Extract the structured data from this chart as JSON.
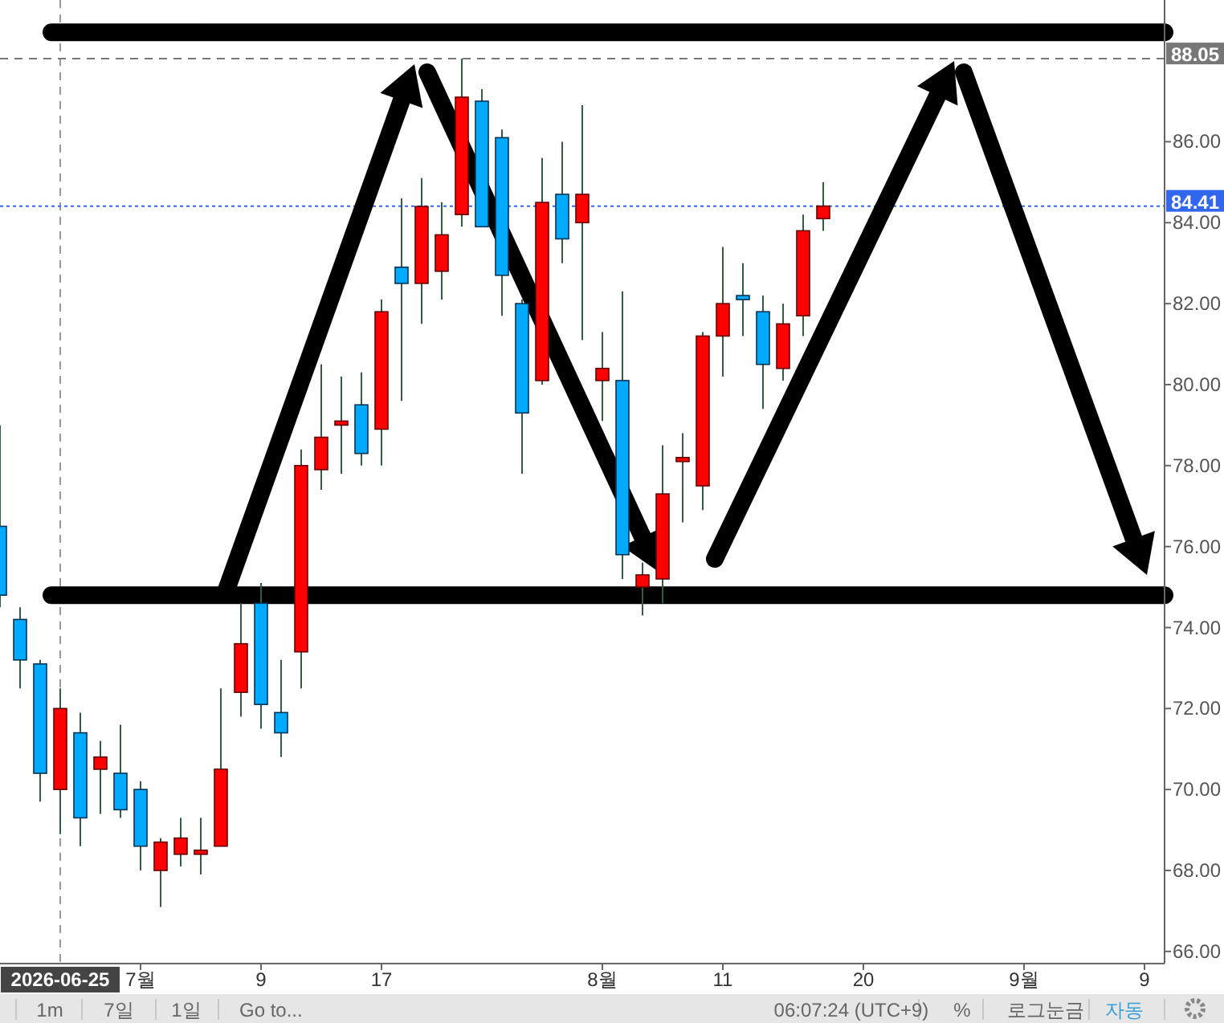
{
  "chart_data": {
    "type": "candlestick",
    "categories": [
      null,
      null,
      null,
      "2026-06-25",
      null,
      null,
      null,
      "7월",
      null,
      null,
      null,
      null,
      null,
      "9",
      null,
      null,
      null,
      null,
      null,
      "17",
      null,
      null,
      null,
      null,
      null,
      null,
      null,
      null,
      null,
      null,
      "8월",
      null,
      null,
      null,
      null,
      null,
      "11",
      null,
      null,
      null,
      null,
      null,
      null,
      "20",
      null,
      null,
      null,
      null,
      null,
      null,
      null,
      "9월",
      null,
      null,
      null,
      null,
      null,
      "9",
      null
    ],
    "ohlc": [
      [
        76.5,
        79.0,
        74.5,
        74.8
      ],
      [
        74.2,
        74.5,
        72.5,
        73.2
      ],
      [
        73.1,
        73.2,
        69.7,
        70.4
      ],
      [
        70.0,
        72.5,
        68.9,
        72.0
      ],
      [
        71.4,
        71.9,
        68.6,
        69.3
      ],
      [
        70.5,
        71.2,
        69.4,
        70.8
      ],
      [
        70.4,
        71.6,
        69.3,
        69.5
      ],
      [
        70.0,
        70.2,
        68.0,
        68.6
      ],
      [
        68.0,
        68.8,
        67.1,
        68.7
      ],
      [
        68.4,
        69.3,
        68.1,
        68.8
      ],
      [
        68.4,
        69.3,
        67.9,
        68.5
      ],
      [
        68.6,
        72.5,
        68.6,
        70.5
      ],
      [
        72.4,
        74.6,
        71.8,
        73.6
      ],
      [
        74.6,
        75.1,
        71.5,
        72.1
      ],
      [
        71.9,
        73.2,
        70.8,
        71.4
      ],
      [
        73.4,
        78.4,
        72.5,
        78.0
      ],
      [
        77.9,
        80.5,
        77.4,
        78.7
      ],
      [
        79.0,
        80.2,
        77.8,
        79.1
      ],
      [
        79.5,
        80.3,
        78.0,
        78.3
      ],
      [
        78.9,
        82.1,
        78.0,
        81.8
      ],
      [
        82.9,
        84.6,
        79.6,
        82.5
      ],
      [
        82.5,
        85.1,
        81.5,
        84.4
      ],
      [
        82.8,
        84.5,
        82.1,
        83.7
      ],
      [
        84.2,
        88.05,
        83.9,
        87.1
      ],
      [
        87.0,
        87.3,
        83.9,
        83.9
      ],
      [
        86.1,
        86.3,
        81.7,
        82.7
      ],
      [
        82.0,
        82.1,
        77.8,
        79.3
      ],
      [
        80.1,
        85.6,
        80.0,
        84.5
      ],
      [
        84.7,
        86.0,
        83.0,
        83.6
      ],
      [
        84.0,
        86.9,
        81.1,
        84.7
      ],
      [
        80.1,
        81.3,
        79.1,
        80.4
      ],
      [
        80.1,
        82.3,
        75.2,
        75.8
      ],
      [
        75.0,
        75.6,
        74.3,
        75.3
      ],
      [
        75.2,
        78.5,
        74.6,
        77.3
      ],
      [
        78.1,
        78.8,
        76.6,
        78.2
      ],
      [
        77.5,
        81.3,
        76.9,
        81.2
      ],
      [
        81.2,
        83.4,
        80.2,
        82.0
      ],
      [
        82.2,
        83.0,
        81.2,
        82.1
      ],
      [
        81.8,
        82.2,
        79.4,
        80.5
      ],
      [
        80.4,
        82.0,
        80.1,
        81.5
      ],
      [
        81.7,
        84.2,
        81.2,
        83.8
      ],
      [
        84.1,
        85.0,
        83.8,
        84.41
      ],
      null,
      null,
      null,
      null,
      null,
      null,
      null,
      null,
      null,
      null,
      null,
      null,
      null,
      null,
      null,
      null,
      null
    ],
    "ylim": [
      65.7,
      89.5
    ],
    "yticks": [
      {
        "value": 66,
        "label": "66.00"
      },
      {
        "value": 68,
        "label": "68.00"
      },
      {
        "value": 70,
        "label": "70.00"
      },
      {
        "value": 72,
        "label": "72.00"
      },
      {
        "value": 74,
        "label": "74.00"
      },
      {
        "value": 76,
        "label": "76.00"
      },
      {
        "value": 78,
        "label": "78.00"
      },
      {
        "value": 80,
        "label": "80.00"
      },
      {
        "value": 82,
        "label": "82.00"
      },
      {
        "value": 84,
        "label": "84.00"
      },
      {
        "value": 86,
        "label": "86.00"
      }
    ],
    "ref_lines": [
      {
        "axis": "x",
        "value": "2026-06-25",
        "color": "#999999",
        "line_style": "dashed"
      },
      {
        "axis": "y",
        "value": 88.05,
        "label": "88.05",
        "color": "#777777",
        "line_style": "dashed"
      },
      {
        "axis": "y",
        "value": 84.41,
        "label": "84.41",
        "color": "#3366ee",
        "line_style": "dotted"
      },
      {
        "axis": "y",
        "value": 88.7,
        "color": "#000000",
        "line_style": "solid"
      },
      {
        "axis": "y",
        "value": 74.8,
        "color": "#000000",
        "line_style": "solid"
      }
    ],
    "grid": false,
    "annotations": [
      "1m",
      "7일",
      "1일",
      "Go to...",
      "06:07:24 (UTC+9)",
      "%",
      "로그눈금",
      "자동"
    ]
  }
}
